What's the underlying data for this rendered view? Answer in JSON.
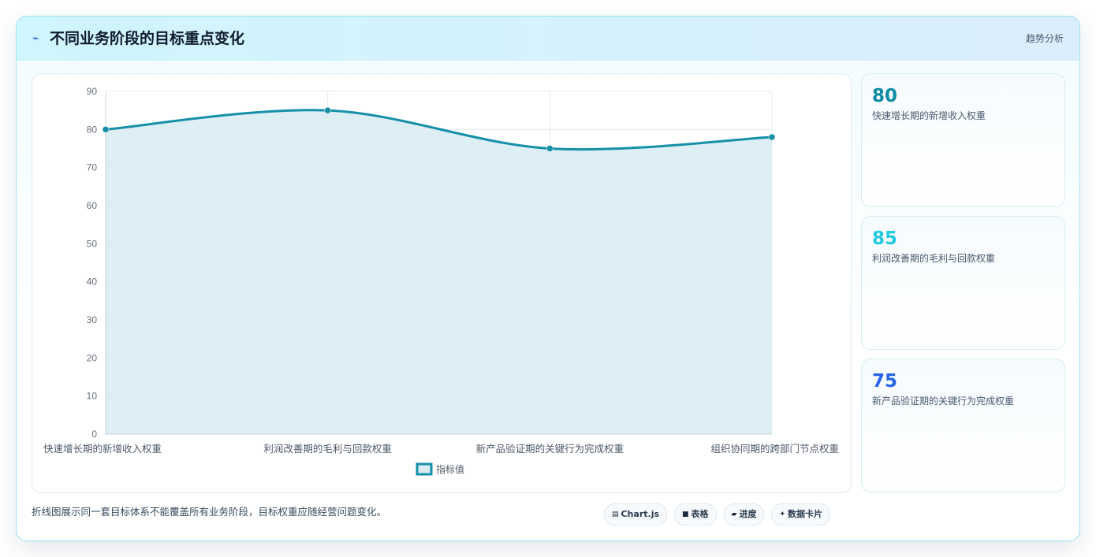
{
  "header": {
    "icon": "lightning-icon",
    "title": "不同业务阶段的目标重点变化",
    "tag": "趋势分析"
  },
  "colors": {
    "line": "#1590a8",
    "area": "#dbedf3",
    "stat_1": "#0e8ba3",
    "stat_2": "#22c9e0",
    "stat_3": "#2563eb"
  },
  "chart_data": {
    "type": "line",
    "categories": [
      "快速增长期的新增收入权重",
      "利润改善期的毛利与回款权重",
      "新产品验证期的关键行为完成权重",
      "组织协同期的跨部门节点权重"
    ],
    "series": [
      {
        "name": "指标值",
        "values": [
          80,
          85,
          75,
          78
        ]
      }
    ],
    "ylim": [
      0,
      90
    ],
    "yticks": [
      "0",
      "10",
      "20",
      "30",
      "40",
      "50",
      "60",
      "70",
      "80",
      "90"
    ],
    "fill": true,
    "smooth": true,
    "grid": true,
    "legend": "bottom"
  },
  "stats": [
    {
      "value": "80",
      "label": "快速增长期的新增收入权重"
    },
    {
      "value": "85",
      "label": "利润改善期的毛利与回款权重"
    },
    {
      "value": "75",
      "label": "新产品验证期的关键行为完成权重"
    }
  ],
  "footer": {
    "note": "折线图展示同一套目标体系不能覆盖所有业务阶段，目标权重应随经营问题变化。",
    "pills": [
      {
        "icon": "chart-icon",
        "label": "Chart.js"
      },
      {
        "icon": "table-icon",
        "label": "表格"
      },
      {
        "icon": "progress-icon",
        "label": "进度"
      },
      {
        "icon": "card-icon",
        "label": "数据卡片"
      }
    ]
  }
}
